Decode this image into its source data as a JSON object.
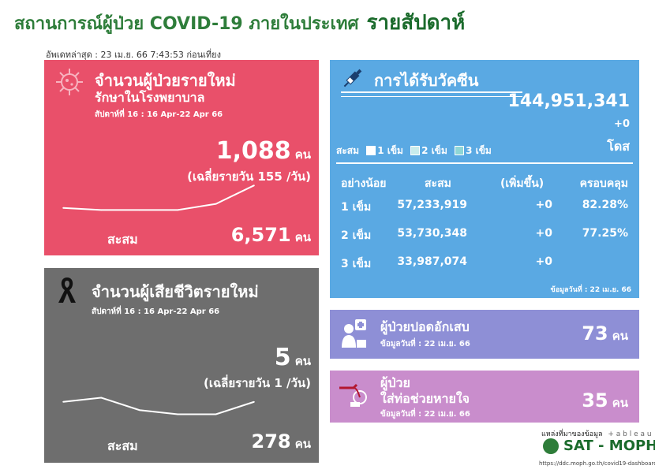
{
  "header": {
    "title": "สถานการณ์ผู้ป่วย COVID-19 ภายในประเทศ",
    "weekly": "รายสัปดาห์",
    "updated": "อัพเดทล่าสุด : 23 เม.ย. 66 7:43:53 ก่อนเที่ยง"
  },
  "new_cases": {
    "title": "จำนวนผู้ป่วยรายใหม่",
    "subtitle": "รักษาในโรงพยาบาล",
    "week": "สัปดาห์ที่ 16 : 16 Apr-22 Apr 66",
    "value": "1,088",
    "unit": "คน",
    "daily_avg": "(เฉลี่ยรายวัน 155 /วัน)",
    "cumulative_label": "สะสม",
    "cumulative_value": "6,571",
    "cumulative_unit": "คน"
  },
  "deaths": {
    "title": "จำนวนผู้เสียชีวิตรายใหม่",
    "week": "สัปดาห์ที่ 16 : 16 Apr-22 Apr 66",
    "value": "5",
    "unit": "คน",
    "daily_avg": "(เฉลี่ยรายวัน 1 /วัน)",
    "cumulative_label": "สะสม",
    "cumulative_value": "278",
    "cumulative_unit": "คน"
  },
  "vaccine": {
    "title": "การได้รับวัคซีน",
    "total": "144,951,341",
    "change": "+0",
    "unit": "โดส",
    "legend_label": "สะสม",
    "legend": [
      "1 เข็ม",
      "2 เข็ม",
      "3 เข็ม"
    ],
    "legend_colors": [
      "#ffffff",
      "#c8ecec",
      "#8ed6d6"
    ],
    "headers": [
      "อย่างน้อย",
      "สะสม",
      "(เพิ่มขึ้น)",
      "ครอบคลุม"
    ],
    "rows": [
      {
        "dose": "1 เข็ม",
        "cumulative": "57,233,919",
        "increase": "+0",
        "coverage": "82.28%"
      },
      {
        "dose": "2 เข็ม",
        "cumulative": "53,730,348",
        "increase": "+0",
        "coverage": "77.25%"
      },
      {
        "dose": "3 เข็ม",
        "cumulative": "33,987,074",
        "increase": "+0",
        "coverage": ""
      }
    ],
    "data_date": "ข้อมูลวันที่ : 22 เม.ย. 66"
  },
  "pneumonia": {
    "title": "ผู้ป่วยปอดอักเสบ",
    "data_date": "ข้อมูลวันที่ : 22 เม.ย. 66",
    "value": "73",
    "unit": "คน"
  },
  "ventilator": {
    "title_line1": "ผู้ป่วย",
    "title_line2": "ใส่ท่อช่วยหายใจ",
    "data_date": "ข้อมูลวันที่ : 22 เม.ย. 66",
    "value": "35",
    "unit": "คน"
  },
  "footer": {
    "source": "แหล่งที่มาของข้อมูล",
    "tableau": "+ a b l e a u",
    "org": "SAT - MOPH",
    "url": "https://ddc.moph.go.th/covid19-dashboard"
  },
  "chart_data": [
    {
      "type": "line",
      "series": [
        {
          "values": [
            7,
            6,
            6,
            6,
            9,
            18
          ]
        }
      ],
      "ylim": [
        0,
        20
      ]
    },
    {
      "type": "line",
      "series": [
        {
          "values": [
            5,
            6,
            3,
            2,
            2,
            5
          ]
        }
      ],
      "ylim": [
        0,
        8
      ]
    }
  ]
}
